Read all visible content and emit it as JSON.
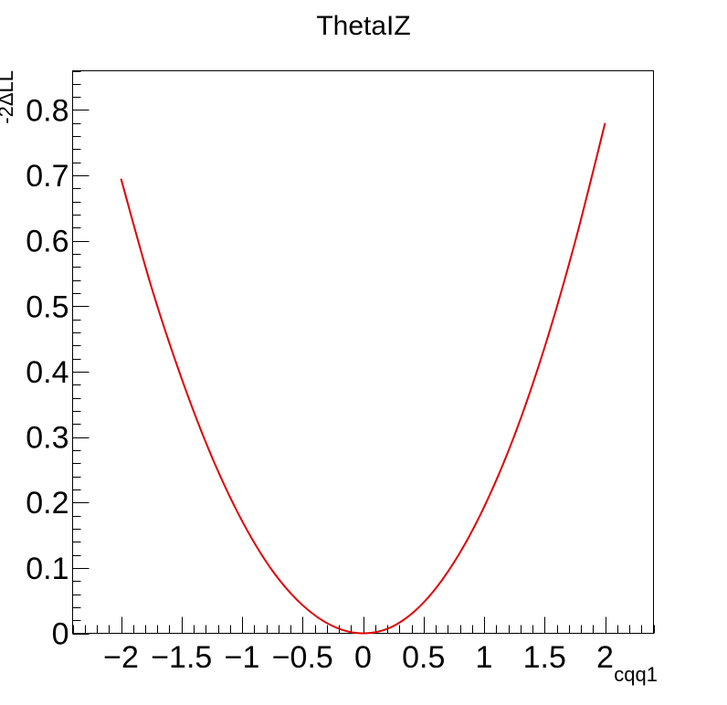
{
  "chart_data": {
    "type": "line",
    "title": "ThetaIZ",
    "xlabel": "cqq1",
    "ylabel": "-2ΔLL",
    "xlim": [
      -2.4,
      2.4
    ],
    "ylim": [
      0,
      0.86
    ],
    "x_ticks": [
      -2,
      -1.5,
      -1,
      -0.5,
      0,
      0.5,
      1,
      1.5,
      2
    ],
    "x_tick_labels": [
      "−2",
      "−1.5",
      "−1",
      "−0.5",
      "0",
      "0.5",
      "1",
      "1.5",
      "2"
    ],
    "y_ticks": [
      0,
      0.1,
      0.2,
      0.3,
      0.4,
      0.5,
      0.6,
      0.7,
      0.8
    ],
    "y_tick_labels": [
      "0",
      "0.1",
      "0.2",
      "0.3",
      "0.4",
      "0.5",
      "0.6",
      "0.7",
      "0.8"
    ],
    "grid": false,
    "series": [
      {
        "color": "#e00000",
        "x": [
          -2,
          -1.75,
          -1.5,
          -1.25,
          -1,
          -0.75,
          -0.5,
          -0.25,
          0,
          0.25,
          0.5,
          0.75,
          1,
          1.25,
          1.5,
          1.75,
          2
        ],
        "y": [
          0.695,
          0.53,
          0.39,
          0.27,
          0.172,
          0.096,
          0.043,
          0.011,
          0,
          0.011,
          0.047,
          0.108,
          0.193,
          0.302,
          0.437,
          0.597,
          0.78
        ]
      }
    ]
  }
}
